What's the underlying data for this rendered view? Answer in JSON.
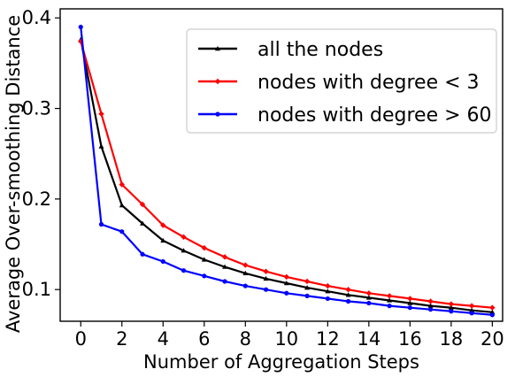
{
  "chart_data": {
    "type": "line",
    "title": "",
    "xlabel": "Number of Aggregation Steps",
    "ylabel": "Average  Over-smoothing Distance",
    "x": [
      0,
      1,
      2,
      3,
      4,
      5,
      6,
      7,
      8,
      9,
      10,
      11,
      12,
      13,
      14,
      15,
      16,
      17,
      18,
      19,
      20
    ],
    "xlim": [
      -1,
      20.5
    ],
    "ylim": [
      0.065,
      0.41
    ],
    "x_ticks": [
      0,
      2,
      4,
      6,
      8,
      10,
      12,
      14,
      16,
      18,
      20
    ],
    "x_tick_labels": [
      "0",
      "2",
      "4",
      "6",
      "8",
      "10",
      "12",
      "14",
      "16",
      "18",
      "20"
    ],
    "y_ticks": [
      0.1,
      0.2,
      0.3,
      0.4
    ],
    "y_tick_labels": [
      "0.1",
      "0.2",
      "0.3",
      "0.4"
    ],
    "grid": false,
    "legend_position": "top-right",
    "series": [
      {
        "name": "all the nodes",
        "color": "#000000",
        "marker": "triangle",
        "values": [
          0.376,
          0.258,
          0.193,
          0.173,
          0.154,
          0.143,
          0.133,
          0.125,
          0.118,
          0.112,
          0.107,
          0.102,
          0.098,
          0.094,
          0.091,
          0.088,
          0.085,
          0.082,
          0.08,
          0.077,
          0.075
        ]
      },
      {
        "name": "nodes with degree < 3",
        "color": "#ff0000",
        "marker": "diamond",
        "values": [
          0.374,
          0.294,
          0.216,
          0.194,
          0.171,
          0.158,
          0.146,
          0.136,
          0.127,
          0.12,
          0.114,
          0.109,
          0.104,
          0.1,
          0.096,
          0.093,
          0.09,
          0.087,
          0.084,
          0.082,
          0.08
        ]
      },
      {
        "name": "nodes with degree > 60",
        "color": "#0000ff",
        "marker": "circle",
        "values": [
          0.39,
          0.172,
          0.164,
          0.139,
          0.131,
          0.121,
          0.115,
          0.109,
          0.104,
          0.1,
          0.096,
          0.093,
          0.09,
          0.087,
          0.085,
          0.082,
          0.08,
          0.078,
          0.076,
          0.074,
          0.072
        ]
      }
    ]
  }
}
